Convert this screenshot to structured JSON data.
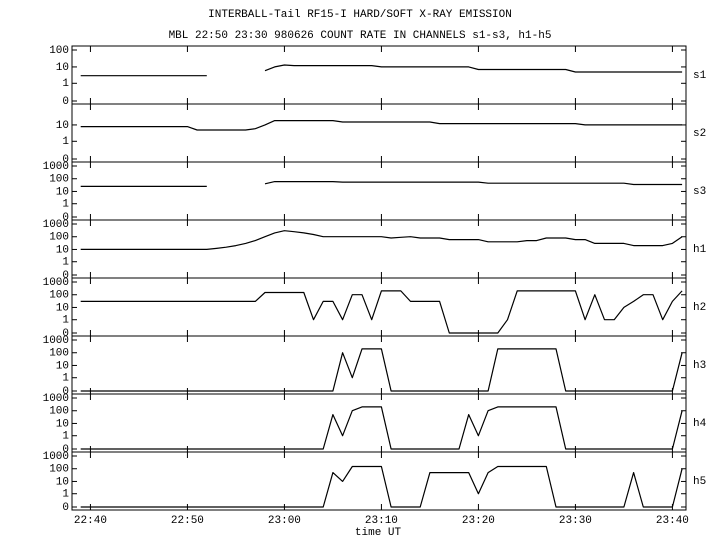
{
  "chart_data": {
    "type": "line",
    "title": "INTERBALL-Tail RF15-I HARD/SOFT X-RAY EMISSION",
    "subtitle": "MBL 22:50 23:30 980626  COUNT RATE IN CHANNELS s1-s3, h1-h5",
    "x_label": "time UT",
    "yscale": "log",
    "xlim": [
      38.1,
      101.4
    ],
    "xticks": [
      {
        "value": 40,
        "label": "22:40"
      },
      {
        "value": 50,
        "label": "22:50"
      },
      {
        "value": 60,
        "label": "23:00"
      },
      {
        "value": 70,
        "label": "23:10"
      },
      {
        "value": 80,
        "label": "23:20"
      },
      {
        "value": 90,
        "label": "23:30"
      },
      {
        "value": 100,
        "label": "23:40"
      }
    ],
    "x": [
      39,
      40,
      41,
      42,
      43,
      44,
      45,
      46,
      47,
      48,
      49,
      50,
      51,
      52,
      53,
      54,
      55,
      56,
      57,
      58,
      59,
      60,
      61,
      62,
      63,
      64,
      65,
      66,
      67,
      68,
      69,
      70,
      71,
      72,
      73,
      74,
      75,
      76,
      77,
      78,
      79,
      80,
      81,
      82,
      83,
      84,
      85,
      86,
      87,
      88,
      89,
      90,
      91,
      92,
      93,
      94,
      95,
      96,
      97,
      98,
      99,
      100,
      101
    ],
    "series": [
      {
        "name": "s1",
        "color": "#000000",
        "ylim": [
          0,
          100
        ],
        "yticks": [
          0,
          1,
          10,
          100
        ],
        "values": [
          3,
          3,
          3,
          3,
          3,
          3,
          3,
          3,
          3,
          3,
          3,
          3,
          3,
          3,
          null,
          null,
          null,
          null,
          null,
          6,
          10,
          13,
          12,
          12,
          12,
          12,
          12,
          12,
          12,
          12,
          12,
          10,
          10,
          10,
          10,
          10,
          10,
          10,
          10,
          10,
          10,
          7,
          7,
          7,
          7,
          7,
          7,
          7,
          7,
          7,
          7,
          5,
          5,
          5,
          5,
          5,
          5,
          5,
          5,
          5,
          5,
          5,
          5
        ]
      },
      {
        "name": "s2",
        "color": "#000000",
        "ylim": [
          0,
          100
        ],
        "yticks": [
          0,
          1,
          10
        ],
        "values": [
          8,
          8,
          8,
          8,
          8,
          8,
          8,
          8,
          8,
          8,
          8,
          8,
          5,
          5,
          5,
          5,
          5,
          5,
          6,
          10,
          18,
          18,
          18,
          18,
          18,
          18,
          18,
          15,
          15,
          15,
          15,
          15,
          15,
          15,
          15,
          15,
          15,
          12,
          12,
          12,
          12,
          12,
          12,
          12,
          12,
          12,
          12,
          12,
          12,
          12,
          12,
          12,
          10,
          10,
          10,
          10,
          10,
          10,
          10,
          10,
          10,
          10,
          10
        ]
      },
      {
        "name": "s3",
        "color": "#000000",
        "ylim": [
          0,
          1000
        ],
        "yticks": [
          0,
          1,
          10,
          100,
          1000
        ],
        "values": [
          25,
          25,
          25,
          25,
          25,
          25,
          25,
          25,
          25,
          25,
          25,
          25,
          25,
          25,
          null,
          null,
          null,
          null,
          null,
          40,
          60,
          60,
          60,
          60,
          60,
          60,
          60,
          55,
          55,
          55,
          55,
          55,
          55,
          55,
          55,
          55,
          55,
          55,
          55,
          55,
          55,
          55,
          45,
          45,
          45,
          45,
          45,
          45,
          45,
          45,
          45,
          45,
          45,
          45,
          45,
          45,
          45,
          35,
          35,
          35,
          35,
          35,
          35
        ]
      },
      {
        "name": "h1",
        "color": "#000000",
        "ylim": [
          0,
          1000
        ],
        "yticks": [
          0,
          1,
          10,
          100,
          1000
        ],
        "values": [
          10,
          10,
          10,
          10,
          10,
          10,
          10,
          10,
          10,
          10,
          10,
          10,
          10,
          10,
          12,
          15,
          20,
          30,
          50,
          100,
          200,
          300,
          250,
          200,
          150,
          100,
          100,
          100,
          100,
          100,
          100,
          100,
          80,
          90,
          100,
          80,
          80,
          80,
          60,
          60,
          60,
          60,
          40,
          40,
          40,
          40,
          50,
          50,
          80,
          80,
          80,
          60,
          60,
          30,
          30,
          30,
          30,
          20,
          20,
          20,
          20,
          30,
          100
        ]
      },
      {
        "name": "h2",
        "color": "#000000",
        "ylim": [
          0,
          1000
        ],
        "yticks": [
          0,
          1,
          10,
          100,
          1000
        ],
        "values": [
          30,
          30,
          30,
          30,
          30,
          30,
          30,
          30,
          30,
          30,
          30,
          30,
          30,
          30,
          30,
          30,
          30,
          30,
          30,
          150,
          150,
          150,
          150,
          150,
          1,
          30,
          30,
          1,
          100,
          100,
          1,
          200,
          200,
          200,
          30,
          30,
          30,
          30,
          0,
          0,
          0,
          0,
          0,
          0,
          1,
          200,
          200,
          200,
          200,
          200,
          200,
          200,
          1,
          100,
          1,
          1,
          10,
          30,
          100,
          100,
          1,
          30,
          200
        ]
      },
      {
        "name": "h3",
        "color": "#000000",
        "ylim": [
          0,
          1000
        ],
        "yticks": [
          0,
          1,
          10,
          100,
          1000
        ],
        "values": [
          0,
          0,
          0,
          0,
          0,
          0,
          0,
          0,
          0,
          0,
          0,
          0,
          0,
          0,
          0,
          0,
          0,
          0,
          0,
          0,
          0,
          0,
          0,
          0,
          0,
          0,
          0,
          100,
          1,
          200,
          200,
          200,
          0,
          0,
          0,
          0,
          0,
          0,
          0,
          0,
          0,
          0,
          0,
          200,
          200,
          200,
          200,
          200,
          200,
          200,
          0,
          0,
          0,
          0,
          0,
          0,
          0,
          0,
          0,
          0,
          0,
          0,
          100
        ]
      },
      {
        "name": "h4",
        "color": "#000000",
        "ylim": [
          0,
          1000
        ],
        "yticks": [
          0,
          1,
          10,
          100,
          1000
        ],
        "values": [
          0,
          0,
          0,
          0,
          0,
          0,
          0,
          0,
          0,
          0,
          0,
          0,
          0,
          0,
          0,
          0,
          0,
          0,
          0,
          0,
          0,
          0,
          0,
          0,
          0,
          0,
          50,
          1,
          100,
          200,
          200,
          200,
          0,
          0,
          0,
          0,
          0,
          0,
          0,
          0,
          50,
          1,
          100,
          200,
          200,
          200,
          200,
          200,
          200,
          200,
          0,
          0,
          0,
          0,
          0,
          0,
          0,
          0,
          0,
          0,
          0,
          0,
          100
        ]
      },
      {
        "name": "h5",
        "color": "#000000",
        "ylim": [
          0,
          1000
        ],
        "yticks": [
          0,
          1,
          10,
          100,
          1000
        ],
        "values": [
          0,
          0,
          0,
          0,
          0,
          0,
          0,
          0,
          0,
          0,
          0,
          0,
          0,
          0,
          0,
          0,
          0,
          0,
          0,
          0,
          0,
          0,
          0,
          0,
          0,
          0,
          50,
          10,
          150,
          150,
          150,
          150,
          0,
          0,
          0,
          0,
          50,
          50,
          50,
          50,
          50,
          1,
          50,
          150,
          150,
          150,
          150,
          150,
          150,
          0,
          0,
          0,
          0,
          0,
          0,
          0,
          0,
          50,
          0,
          0,
          0,
          0,
          100
        ]
      }
    ]
  }
}
